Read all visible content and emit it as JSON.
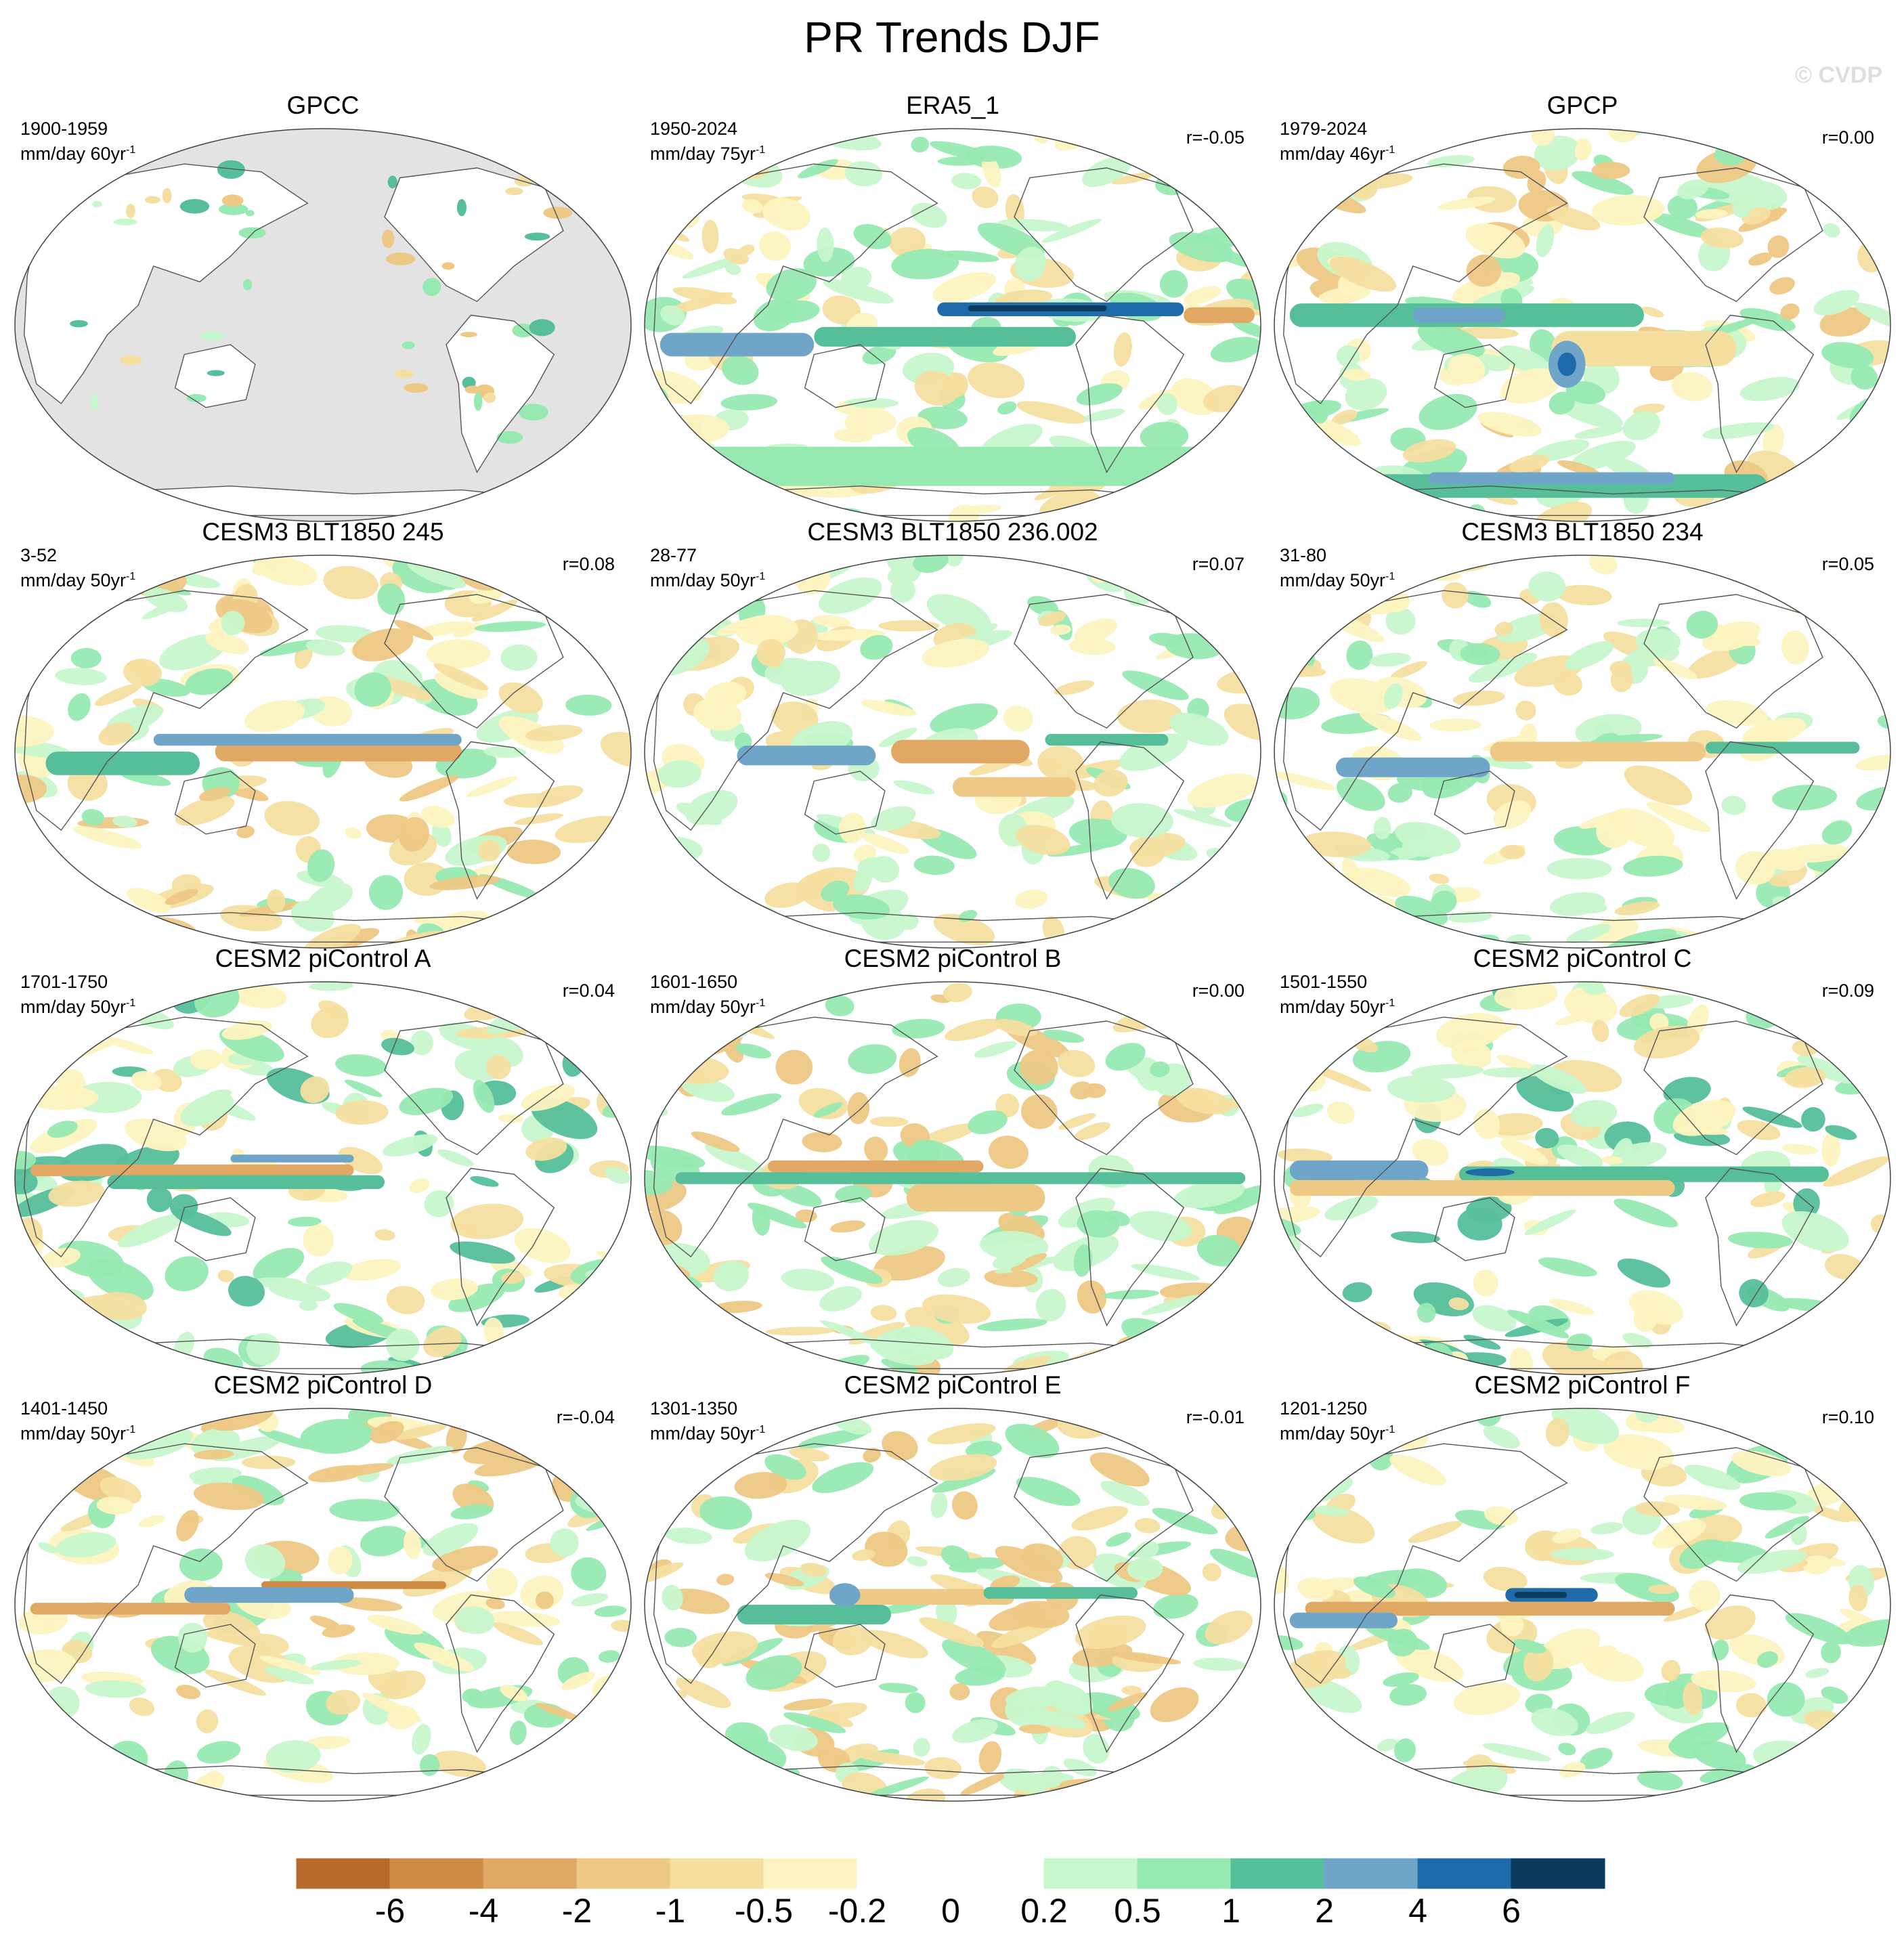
{
  "figure": {
    "title": "PR Trends DJF",
    "watermark": "© CVDP"
  },
  "chart_data": {
    "type": "heatmap",
    "projection": "Robinson (Pacific-centered)",
    "variable": "precipitation trend",
    "season": "DJF",
    "colorbar": {
      "levels": [
        "-6",
        "-4",
        "-2",
        "-1",
        "-0.5",
        "-0.2",
        "0",
        "0.2",
        "0.5",
        "1",
        "2",
        "4",
        "6"
      ],
      "colors": [
        "#b5692a",
        "#cf8a44",
        "#e0a765",
        "#eec885",
        "#f4dea0",
        "#fdf3c0",
        "#ffffff",
        "#ffffff",
        "#c7f7cc",
        "#97e9b2",
        "#56bf9a",
        "#6fa5c8",
        "#1f6aa8",
        "#0a3b5d"
      ]
    },
    "panels": [
      {
        "title": "GPCC",
        "period": "1900-1959",
        "units": "mm/day 60yr",
        "r": "",
        "pattern": "gpcc"
      },
      {
        "title": "ERA5_1",
        "period": "1950-2024",
        "units": "mm/day 75yr",
        "r": "r=-0.05",
        "pattern": "era5"
      },
      {
        "title": "GPCP",
        "period": "1979-2024",
        "units": "mm/day 46yr",
        "r": "r=0.00",
        "pattern": "gpcp"
      },
      {
        "title": "CESM3 BLT1850 245",
        "period": "3-52",
        "units": "mm/day 50yr",
        "r": "r=0.08",
        "pattern": "cesm3a"
      },
      {
        "title": "CESM3 BLT1850 236.002",
        "period": "28-77",
        "units": "mm/day 50yr",
        "r": "r=0.07",
        "pattern": "cesm3b"
      },
      {
        "title": "CESM3 BLT1850 234",
        "period": "31-80",
        "units": "mm/day 50yr",
        "r": "r=0.05",
        "pattern": "cesm3c"
      },
      {
        "title": "CESM2 piControl A",
        "period": "1701-1750",
        "units": "mm/day 50yr",
        "r": "r=0.04",
        "pattern": "picA"
      },
      {
        "title": "CESM2 piControl B",
        "period": "1601-1650",
        "units": "mm/day 50yr",
        "r": "r=0.00",
        "pattern": "picB"
      },
      {
        "title": "CESM2 piControl C",
        "period": "1501-1550",
        "units": "mm/day 50yr",
        "r": "r=0.09",
        "pattern": "picC"
      },
      {
        "title": "CESM2 piControl D",
        "period": "1401-1450",
        "units": "mm/day 50yr",
        "r": "r=-0.04",
        "pattern": "picD"
      },
      {
        "title": "CESM2 piControl E",
        "period": "1301-1350",
        "units": "mm/day 50yr",
        "r": "r=-0.01",
        "pattern": "picE"
      },
      {
        "title": "CESM2 piControl F",
        "period": "1201-1250",
        "units": "mm/day 50yr",
        "r": "r=0.10",
        "pattern": "picF"
      }
    ]
  }
}
